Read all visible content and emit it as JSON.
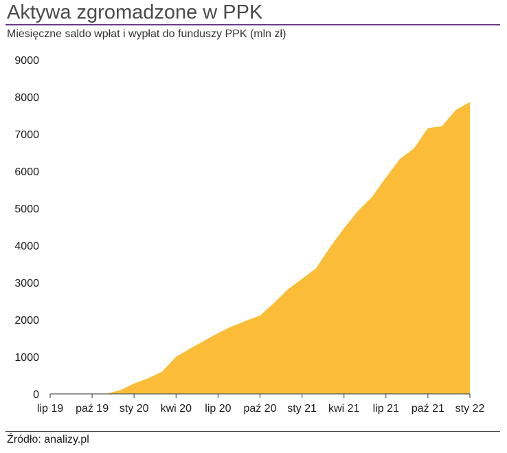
{
  "header": {
    "title": "Aktywa zgromadzone w PPK",
    "subtitle": "Miesięczne saldo wpłat i wypłat do funduszy PPK  (mln zł)"
  },
  "footer": {
    "source": "Źródło: analizy.pl"
  },
  "colors": {
    "area": "#fbbd37",
    "title_rule": "#6b3a8c",
    "axis": "#555555"
  },
  "chart_data": {
    "type": "area",
    "title": "Aktywa zgromadzone w PPK",
    "subtitle": "Miesięczne saldo wpłat i wypłat do funduszy PPK  (mln zł)",
    "xlabel": "",
    "ylabel": "",
    "ylim": [
      0,
      9000
    ],
    "yticks": [
      "0",
      "1000",
      "2000",
      "3000",
      "4000",
      "5000",
      "6000",
      "7000",
      "8000",
      "9000"
    ],
    "xticks": [
      "lip 19",
      "paź 19",
      "sty 20",
      "kwi 20",
      "lip 20",
      "paź 20",
      "sty 21",
      "kwi 21",
      "lip 21",
      "paź 21",
      "sty 22"
    ],
    "grid": false,
    "legend": "none",
    "x": [
      "2019-07",
      "2019-08",
      "2019-09",
      "2019-10",
      "2019-11",
      "2019-12",
      "2020-01",
      "2020-02",
      "2020-03",
      "2020-04",
      "2020-05",
      "2020-06",
      "2020-07",
      "2020-08",
      "2020-09",
      "2020-10",
      "2020-11",
      "2020-12",
      "2021-01",
      "2021-02",
      "2021-03",
      "2021-04",
      "2021-05",
      "2021-06",
      "2021-07",
      "2021-08",
      "2021-09",
      "2021-10",
      "2021-11",
      "2021-12",
      "2022-01"
    ],
    "series": [
      {
        "values": [
          0,
          0,
          0,
          0,
          0,
          100,
          280,
          420,
          600,
          1000,
          1220,
          1430,
          1640,
          1820,
          1970,
          2110,
          2450,
          2820,
          3100,
          3380,
          3950,
          4460,
          4930,
          5300,
          5830,
          6330,
          6610,
          7160,
          7210,
          7650,
          7860
        ]
      }
    ]
  }
}
